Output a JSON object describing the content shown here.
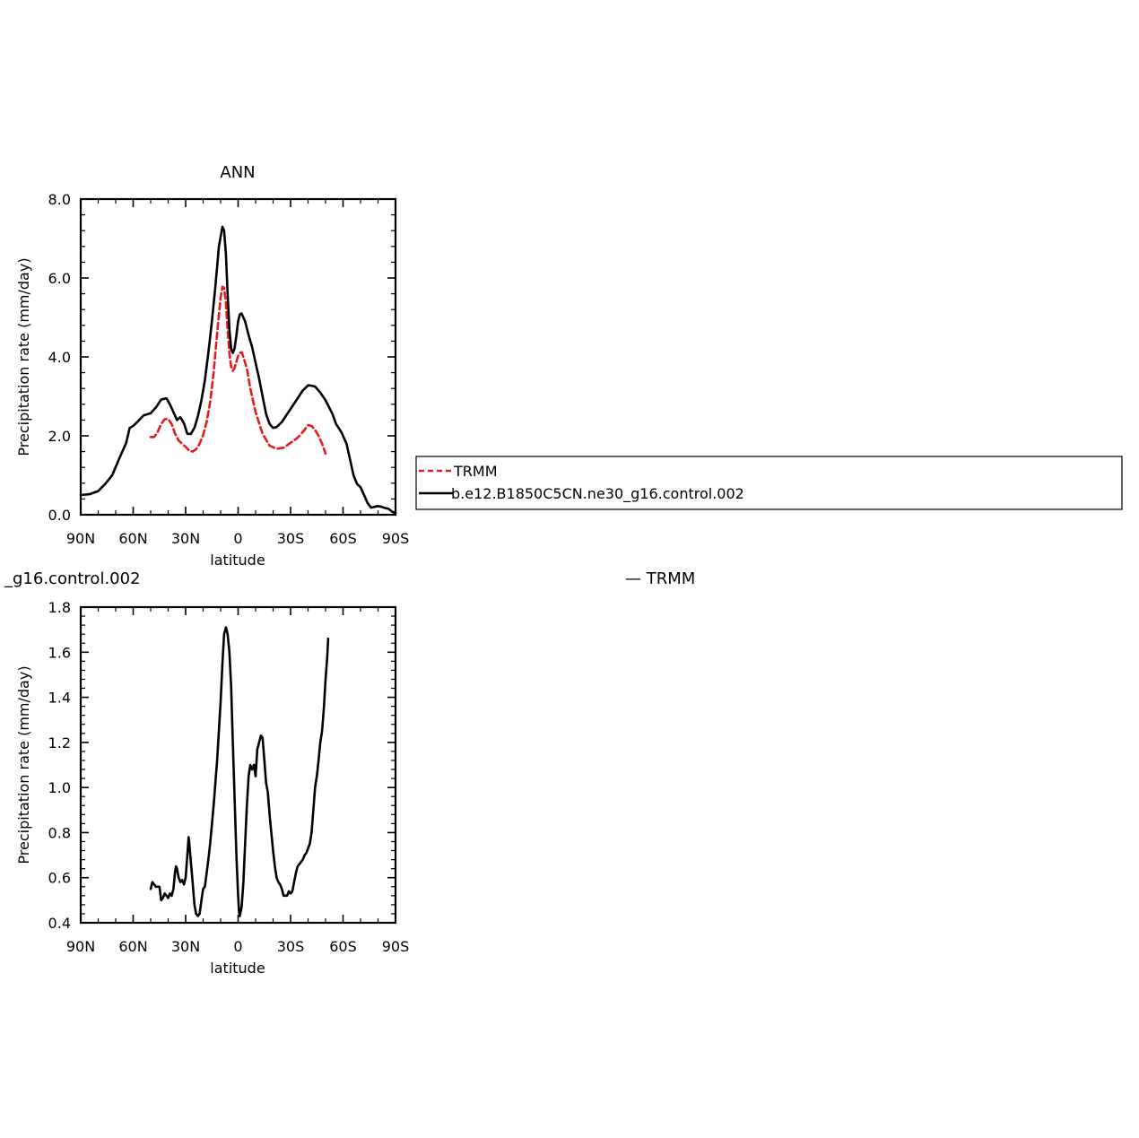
{
  "chart_data": [
    {
      "type": "line",
      "title": "ANN",
      "xlabel": "latitude",
      "ylabel": "Precipitation rate (mm/day)",
      "xlim": [
        90,
        -90
      ],
      "ylim": [
        0,
        8
      ],
      "x_ticks": [
        90,
        60,
        30,
        0,
        -30,
        -60,
        -90
      ],
      "x_tick_labels": [
        "90N",
        "60N",
        "30N",
        "0",
        "30S",
        "60S",
        "90S"
      ],
      "y_ticks": [
        0,
        2,
        4,
        6,
        8
      ],
      "y_tick_labels": [
        "0.0",
        "2.0",
        "4.0",
        "6.0",
        "8.0"
      ],
      "grid": false,
      "legend_position": "right",
      "series": [
        {
          "name": "TRMM",
          "color": "#e41a1c",
          "dash": true,
          "points": [
            [
              50,
              1.97
            ],
            [
              48,
              1.97
            ],
            [
              46,
              2.1
            ],
            [
              44,
              2.3
            ],
            [
              42,
              2.42
            ],
            [
              40,
              2.43
            ],
            [
              38,
              2.3
            ],
            [
              36,
              2.05
            ],
            [
              34,
              1.88
            ],
            [
              32,
              1.8
            ],
            [
              30,
              1.72
            ],
            [
              28,
              1.63
            ],
            [
              26,
              1.6
            ],
            [
              24,
              1.66
            ],
            [
              22,
              1.8
            ],
            [
              20,
              2.02
            ],
            [
              18,
              2.35
            ],
            [
              16,
              2.85
            ],
            [
              14,
              3.6
            ],
            [
              12,
              4.6
            ],
            [
              10,
              5.5
            ],
            [
              9,
              5.78
            ],
            [
              8,
              5.75
            ],
            [
              7,
              5.35
            ],
            [
              6,
              4.7
            ],
            [
              5,
              4.1
            ],
            [
              4,
              3.75
            ],
            [
              3,
              3.65
            ],
            [
              2,
              3.72
            ],
            [
              1,
              3.88
            ],
            [
              0,
              4.02
            ],
            [
              -1,
              4.1
            ],
            [
              -2,
              4.12
            ],
            [
              -3,
              4.0
            ],
            [
              -5,
              3.7
            ],
            [
              -7,
              3.2
            ],
            [
              -10,
              2.6
            ],
            [
              -14,
              2.05
            ],
            [
              -18,
              1.75
            ],
            [
              -22,
              1.67
            ],
            [
              -26,
              1.7
            ],
            [
              -30,
              1.82
            ],
            [
              -34,
              1.95
            ],
            [
              -38,
              2.15
            ],
            [
              -40,
              2.27
            ],
            [
              -42,
              2.25
            ],
            [
              -44,
              2.15
            ],
            [
              -46,
              2.0
            ],
            [
              -48,
              1.8
            ],
            [
              -50,
              1.55
            ]
          ]
        },
        {
          "name": "b.e12.B1850C5CN.ne30_g16.control.002",
          "color": "#000000",
          "dash": false,
          "points": [
            [
              90,
              0.5
            ],
            [
              85,
              0.52
            ],
            [
              80,
              0.6
            ],
            [
              76,
              0.78
            ],
            [
              72,
              1.0
            ],
            [
              68,
              1.42
            ],
            [
              64,
              1.82
            ],
            [
              62,
              2.2
            ],
            [
              60,
              2.25
            ],
            [
              57,
              2.38
            ],
            [
              54,
              2.52
            ],
            [
              50,
              2.57
            ],
            [
              47,
              2.72
            ],
            [
              44,
              2.92
            ],
            [
              41,
              2.95
            ],
            [
              39,
              2.8
            ],
            [
              37,
              2.6
            ],
            [
              35,
              2.4
            ],
            [
              33,
              2.47
            ],
            [
              31,
              2.32
            ],
            [
              29,
              2.05
            ],
            [
              27,
              2.05
            ],
            [
              25,
              2.2
            ],
            [
              23,
              2.5
            ],
            [
              21,
              2.9
            ],
            [
              19,
              3.4
            ],
            [
              17,
              4.1
            ],
            [
              15,
              4.9
            ],
            [
              13,
              5.8
            ],
            [
              11,
              6.8
            ],
            [
              9,
              7.3
            ],
            [
              8,
              7.2
            ],
            [
              7,
              6.6
            ],
            [
              6,
              5.6
            ],
            [
              5,
              4.7
            ],
            [
              4,
              4.2
            ],
            [
              3,
              4.1
            ],
            [
              2,
              4.22
            ],
            [
              1,
              4.55
            ],
            [
              0,
              4.9
            ],
            [
              -1,
              5.08
            ],
            [
              -2,
              5.1
            ],
            [
              -4,
              4.9
            ],
            [
              -6,
              4.55
            ],
            [
              -8,
              4.25
            ],
            [
              -10,
              3.85
            ],
            [
              -12,
              3.45
            ],
            [
              -14,
              3.0
            ],
            [
              -16,
              2.55
            ],
            [
              -18,
              2.3
            ],
            [
              -20,
              2.2
            ],
            [
              -22,
              2.22
            ],
            [
              -25,
              2.35
            ],
            [
              -28,
              2.55
            ],
            [
              -31,
              2.75
            ],
            [
              -34,
              2.95
            ],
            [
              -37,
              3.15
            ],
            [
              -40,
              3.28
            ],
            [
              -42,
              3.27
            ],
            [
              -44,
              3.25
            ],
            [
              -47,
              3.1
            ],
            [
              -50,
              2.9
            ],
            [
              -54,
              2.55
            ],
            [
              -56,
              2.3
            ],
            [
              -59,
              2.1
            ],
            [
              -62,
              1.8
            ],
            [
              -64,
              1.4
            ],
            [
              -66,
              1.0
            ],
            [
              -68,
              0.78
            ],
            [
              -70,
              0.7
            ],
            [
              -72,
              0.5
            ],
            [
              -74,
              0.3
            ],
            [
              -76,
              0.18
            ],
            [
              -78,
              0.2
            ],
            [
              -80,
              0.22
            ],
            [
              -82,
              0.2
            ],
            [
              -84,
              0.17
            ],
            [
              -86,
              0.15
            ],
            [
              -88,
              0.08
            ],
            [
              -90,
              0.04
            ]
          ]
        }
      ]
    },
    {
      "type": "line",
      "title": "_g16.control.002",
      "title_right": "— TRMM",
      "xlabel": "latitude",
      "ylabel": "Precipitation rate (mm/day)",
      "xlim": [
        90,
        -90
      ],
      "ylim": [
        0.4,
        1.8
      ],
      "x_ticks": [
        90,
        60,
        30,
        0,
        -30,
        -60,
        -90
      ],
      "x_tick_labels": [
        "90N",
        "60N",
        "30N",
        "0",
        "30S",
        "60S",
        "90S"
      ],
      "y_ticks": [
        0.4,
        0.6,
        0.8,
        1.0,
        1.2,
        1.4,
        1.6,
        1.8
      ],
      "y_tick_labels": [
        "0.4",
        "0.6",
        "0.8",
        "1.0",
        "1.2",
        "1.4",
        "1.6",
        "1.8"
      ],
      "grid": false,
      "series": [
        {
          "color": "#000000",
          "dash": false,
          "points": [
            [
              50,
              0.55
            ],
            [
              49,
              0.58
            ],
            [
              48,
              0.57
            ],
            [
              47,
              0.56
            ],
            [
              45,
              0.56
            ],
            [
              44,
              0.5
            ],
            [
              43,
              0.51
            ],
            [
              42,
              0.53
            ],
            [
              41,
              0.52
            ],
            [
              40,
              0.51
            ],
            [
              39,
              0.53
            ],
            [
              38,
              0.52
            ],
            [
              37,
              0.55
            ],
            [
              36,
              0.63
            ],
            [
              35.5,
              0.65
            ],
            [
              35,
              0.64
            ],
            [
              34,
              0.6
            ],
            [
              33,
              0.58
            ],
            [
              32,
              0.59
            ],
            [
              31,
              0.57
            ],
            [
              30,
              0.6
            ],
            [
              29,
              0.7
            ],
            [
              28.3,
              0.78
            ],
            [
              28,
              0.76
            ],
            [
              27,
              0.67
            ],
            [
              26,
              0.58
            ],
            [
              25,
              0.48
            ],
            [
              24,
              0.44
            ],
            [
              23,
              0.43
            ],
            [
              22,
              0.44
            ],
            [
              21,
              0.5
            ],
            [
              20,
              0.55
            ],
            [
              19,
              0.56
            ],
            [
              18,
              0.62
            ],
            [
              17,
              0.68
            ],
            [
              16,
              0.75
            ],
            [
              14,
              0.92
            ],
            [
              12,
              1.12
            ],
            [
              10,
              1.38
            ],
            [
              9,
              1.55
            ],
            [
              8,
              1.68
            ],
            [
              7,
              1.71
            ],
            [
              6,
              1.68
            ],
            [
              5,
              1.6
            ],
            [
              4,
              1.45
            ],
            [
              3,
              1.2
            ],
            [
              2,
              0.95
            ],
            [
              1,
              0.7
            ],
            [
              0,
              0.52
            ],
            [
              -0.5,
              0.45
            ],
            [
              -1,
              0.43
            ],
            [
              -2,
              0.47
            ],
            [
              -3,
              0.58
            ],
            [
              -4,
              0.75
            ],
            [
              -5,
              0.92
            ],
            [
              -6,
              1.05
            ],
            [
              -7,
              1.1
            ],
            [
              -8,
              1.08
            ],
            [
              -9,
              1.1
            ],
            [
              -10,
              1.05
            ],
            [
              -11,
              1.17
            ],
            [
              -12,
              1.2
            ],
            [
              -13,
              1.23
            ],
            [
              -14,
              1.22
            ],
            [
              -15,
              1.12
            ],
            [
              -16,
              1.02
            ],
            [
              -17,
              0.98
            ],
            [
              -18,
              0.88
            ],
            [
              -19,
              0.8
            ],
            [
              -20,
              0.72
            ],
            [
              -21,
              0.65
            ],
            [
              -22,
              0.6
            ],
            [
              -23,
              0.58
            ],
            [
              -24,
              0.57
            ],
            [
              -25,
              0.55
            ],
            [
              -26,
              0.52
            ],
            [
              -27,
              0.52
            ],
            [
              -28,
              0.52
            ],
            [
              -29,
              0.54
            ],
            [
              -30,
              0.53
            ],
            [
              -31,
              0.54
            ],
            [
              -32,
              0.58
            ],
            [
              -33,
              0.62
            ],
            [
              -34,
              0.65
            ],
            [
              -35,
              0.66
            ],
            [
              -36,
              0.67
            ],
            [
              -37,
              0.68
            ],
            [
              -38,
              0.7
            ],
            [
              -39,
              0.71
            ],
            [
              -40,
              0.73
            ],
            [
              -41,
              0.75
            ],
            [
              -42,
              0.8
            ],
            [
              -43,
              0.9
            ],
            [
              -44,
              1.0
            ],
            [
              -45,
              1.05
            ],
            [
              -46,
              1.12
            ],
            [
              -47,
              1.2
            ],
            [
              -48,
              1.25
            ],
            [
              -49,
              1.35
            ],
            [
              -50,
              1.48
            ],
            [
              -51,
              1.58
            ],
            [
              -51.5,
              1.66
            ]
          ]
        }
      ]
    }
  ]
}
